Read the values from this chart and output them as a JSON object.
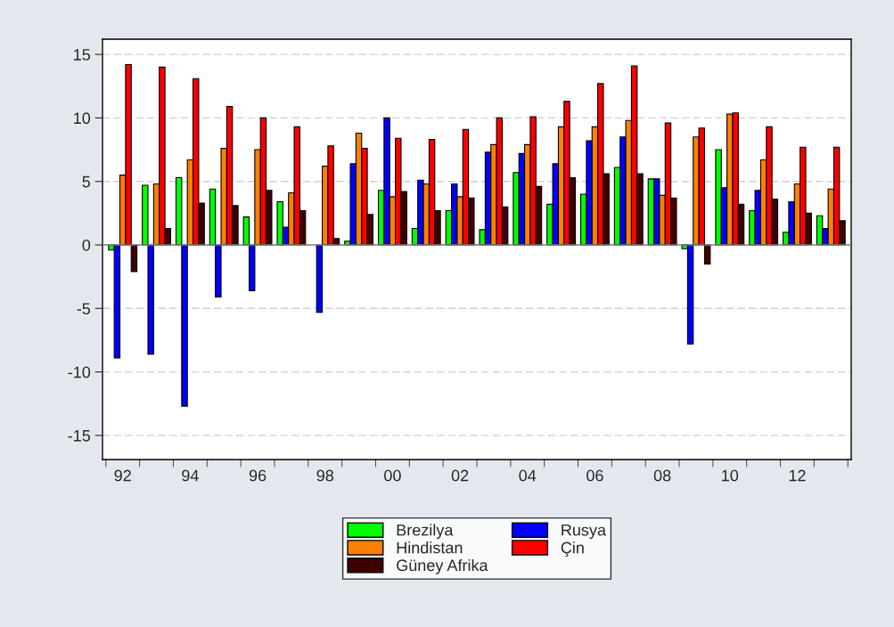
{
  "chart_data": {
    "type": "bar",
    "categories": [
      "92",
      null,
      "94",
      null,
      "96",
      null,
      "98",
      null,
      "00",
      null,
      "02",
      null,
      "04",
      null,
      "06",
      null,
      "08",
      null,
      "10",
      null,
      "12",
      null
    ],
    "series": [
      {
        "name": "Brezilya",
        "color": "#00ff00",
        "values": [
          -0.4,
          4.7,
          5.3,
          4.4,
          2.2,
          3.4,
          null,
          0.3,
          4.3,
          1.3,
          2.7,
          1.2,
          5.7,
          3.2,
          4.0,
          6.1,
          5.2,
          -0.3,
          7.5,
          2.7,
          1.0,
          2.3
        ]
      },
      {
        "name": "Rusya",
        "color": "#0000ff",
        "values": [
          -8.9,
          -8.6,
          -12.7,
          -4.1,
          -3.6,
          1.4,
          -5.3,
          6.4,
          10.0,
          5.1,
          4.8,
          7.3,
          7.2,
          6.4,
          8.2,
          8.5,
          5.2,
          -7.8,
          4.5,
          4.3,
          3.4,
          1.3
        ]
      },
      {
        "name": "Hindistan",
        "color": "#ff8000",
        "values": [
          5.5,
          4.8,
          6.7,
          7.6,
          7.5,
          4.1,
          6.2,
          8.8,
          3.8,
          4.8,
          3.8,
          7.9,
          7.9,
          9.3,
          9.3,
          9.8,
          3.9,
          8.5,
          10.3,
          6.7,
          4.8,
          4.4
        ]
      },
      {
        "name": "Çin",
        "color": "#ff0000",
        "values": [
          14.2,
          14.0,
          13.1,
          10.9,
          10.0,
          9.3,
          7.8,
          7.6,
          8.4,
          8.3,
          9.1,
          10.0,
          10.1,
          11.3,
          12.7,
          14.1,
          9.6,
          9.2,
          10.4,
          9.3,
          7.7,
          7.7
        ]
      },
      {
        "name": "Güney Afrika",
        "color": "#400000",
        "values": [
          -2.1,
          1.3,
          3.3,
          3.1,
          4.3,
          2.7,
          0.5,
          2.4,
          4.2,
          2.7,
          3.7,
          3.0,
          4.6,
          5.3,
          5.6,
          5.6,
          3.7,
          -1.5,
          3.2,
          3.6,
          2.5,
          1.9
        ]
      }
    ],
    "ylim": [
      -16.9,
      16.2
    ],
    "yticks": [
      -15,
      -10,
      -5,
      0,
      5,
      10,
      15
    ],
    "grid": "y",
    "legend": "bottom"
  }
}
